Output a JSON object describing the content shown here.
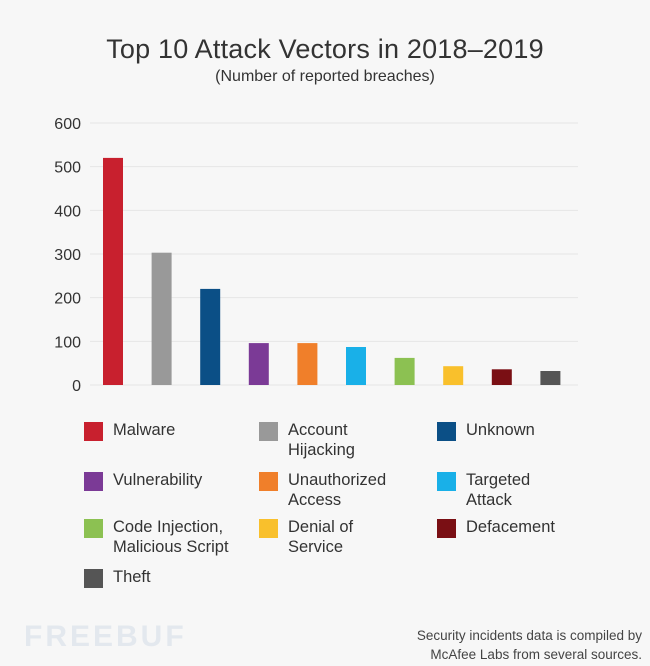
{
  "chart_data": {
    "type": "bar",
    "title": "Top 10 Attack Vectors in 2018–2019",
    "subtitle": "(Number of reported breaches)",
    "xlabel": "",
    "ylabel": "",
    "ylim": [
      0,
      600
    ],
    "yticks": [
      "0",
      "100",
      "200",
      "300",
      "400",
      "500",
      "600"
    ],
    "grid": true,
    "legend_position": "bottom",
    "categories": [
      "Malware",
      "Account Hijacking",
      "Unknown",
      "Vulnerability",
      "Unauthorized Access",
      "Targeted Attack",
      "Code Injection, Malicious Script",
      "Denial of Service",
      "Defacement",
      "Theft"
    ],
    "values": [
      520,
      303,
      220,
      96,
      96,
      87,
      62,
      43,
      36,
      32
    ],
    "colors": [
      "#c8202e",
      "#999999",
      "#0b4f86",
      "#7b3a96",
      "#f07f2a",
      "#19b0e8",
      "#8cc152",
      "#f9c02c",
      "#7a0f14",
      "#555555"
    ]
  },
  "legend": [
    {
      "line1": "Malware",
      "line2": ""
    },
    {
      "line1": "Account",
      "line2": "Hijacking"
    },
    {
      "line1": "Unknown",
      "line2": ""
    },
    {
      "line1": "Vulnerability",
      "line2": ""
    },
    {
      "line1": "Unauthorized",
      "line2": "Access"
    },
    {
      "line1": "Targeted",
      "line2": "Attack"
    },
    {
      "line1": "Code Injection,",
      "line2": "Malicious Script"
    },
    {
      "line1": "Denial of",
      "line2": "Service"
    },
    {
      "line1": "Defacement",
      "line2": ""
    },
    {
      "line1": "Theft",
      "line2": ""
    }
  ],
  "watermark": "FREEBUF",
  "footnote": {
    "line1": "Security incidents data is compiled by",
    "line2": "McAfee Labs from several sources."
  }
}
